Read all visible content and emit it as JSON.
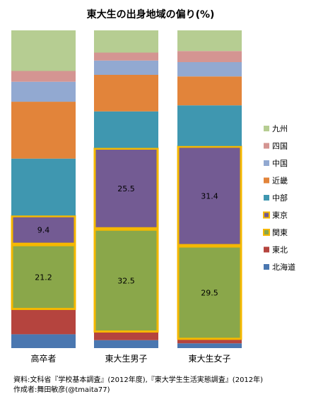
{
  "chart_data": {
    "type": "bar",
    "stacked": true,
    "normalized": true,
    "title": "東大生の出身地域の偏り(%)",
    "categories": [
      "高卒者",
      "東大生男子",
      "東大生女子"
    ],
    "legend_position": "right",
    "highlighted_series": [
      "東京",
      "関東"
    ],
    "highlight_color": "#f5b800",
    "series": [
      {
        "name": "北海道",
        "color": "#4a77b0",
        "values": [
          4.5,
          2.5,
          1.5
        ]
      },
      {
        "name": "東北",
        "color": "#b5443e",
        "values": [
          8.0,
          2.5,
          1.2
        ]
      },
      {
        "name": "関東",
        "color": "#8aa74a",
        "values": [
          21.2,
          32.5,
          29.5
        ],
        "labels": [
          "21.2",
          "32.5",
          "29.5"
        ]
      },
      {
        "name": "東京",
        "color": "#735b93",
        "values": [
          9.4,
          25.5,
          31.4
        ],
        "labels": [
          "9.4",
          "25.5",
          "31.4"
        ]
      },
      {
        "name": "中部",
        "color": "#3f97b0",
        "values": [
          18.5,
          11.5,
          12.8
        ]
      },
      {
        "name": "近畿",
        "color": "#e2843a",
        "values": [
          18.5,
          11.5,
          9.1
        ]
      },
      {
        "name": "中国",
        "color": "#92a9d1",
        "values": [
          6.5,
          4.5,
          4.5
        ]
      },
      {
        "name": "四国",
        "color": "#d49592",
        "values": [
          3.5,
          2.5,
          3.5
        ]
      },
      {
        "name": "九州",
        "color": "#b6cd92",
        "values": [
          13.2,
          7.0,
          6.5
        ]
      }
    ]
  },
  "source_line": "資料:文科省『学校基本調査』(2012年度),『東大学生生活実態調査』(2012年)",
  "author_line": "作成者:舞田敏彦(@tmaita77)"
}
